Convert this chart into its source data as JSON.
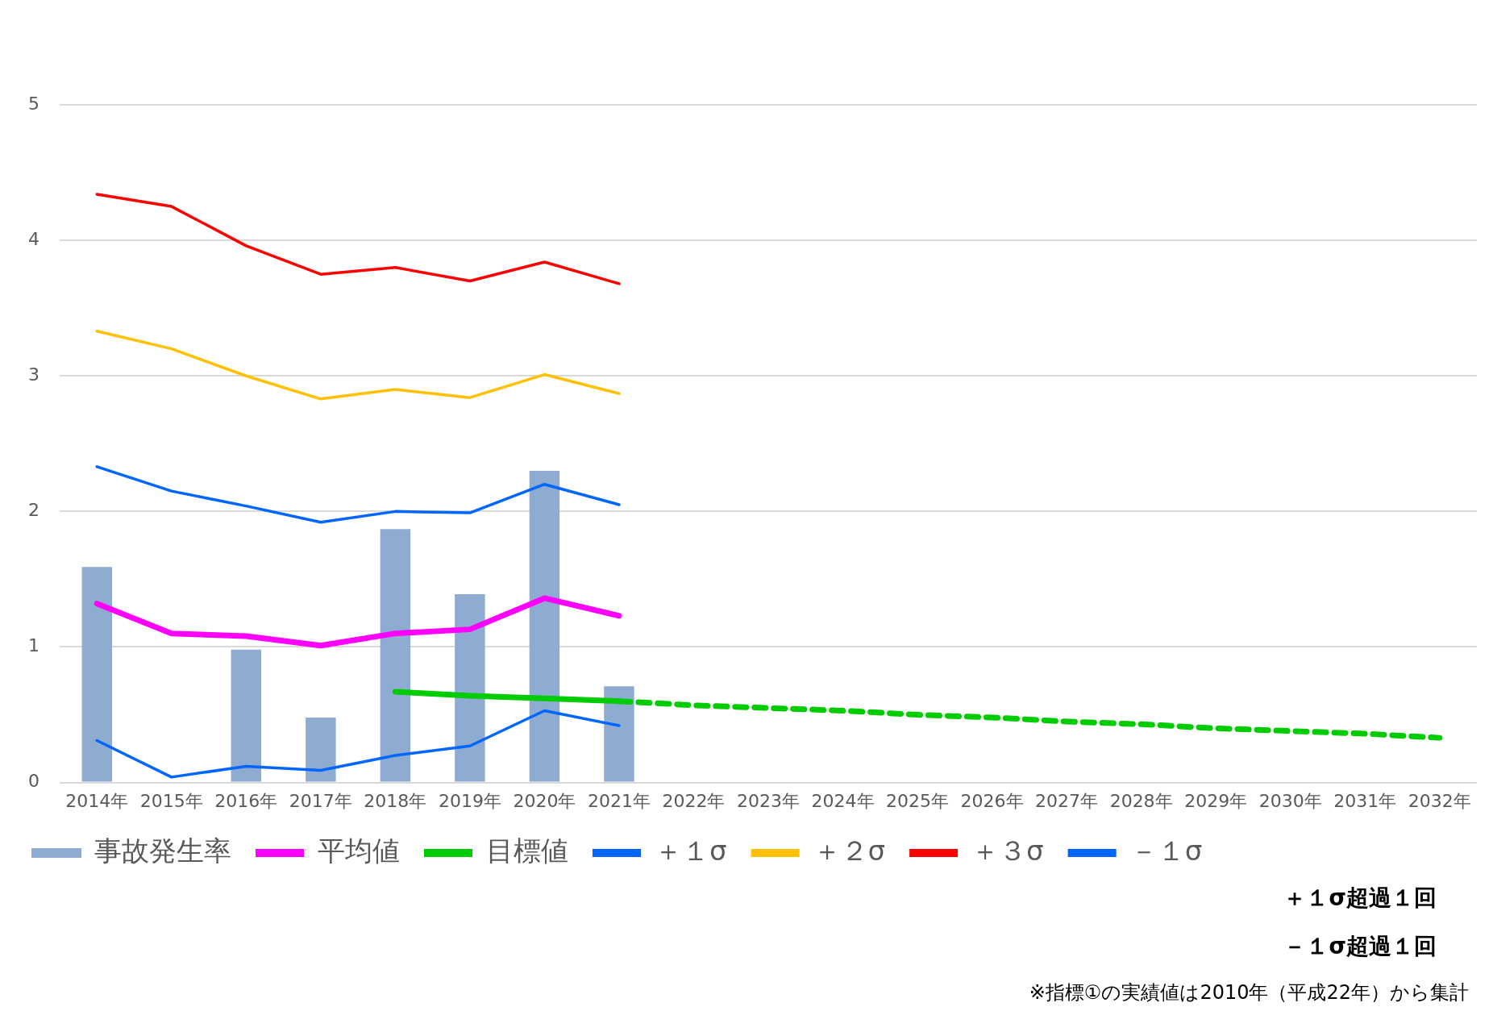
{
  "chart_data": {
    "type": "bar",
    "categories": [
      "2014年",
      "2015年",
      "2016年",
      "2017年",
      "2018年",
      "2019年",
      "2020年",
      "2021年",
      "2022年",
      "2023年",
      "2024年",
      "2025年",
      "2026年",
      "2027年",
      "2028年",
      "2029年",
      "2030年",
      "2031年",
      "2032年"
    ],
    "series": [
      {
        "name": "事故発生率",
        "color": "#8eacd2",
        "values": [
          1.59,
          0,
          0.98,
          0.48,
          1.87,
          1.39,
          2.3,
          0.71,
          null,
          null,
          null,
          null,
          null,
          null,
          null,
          null,
          null,
          null,
          null
        ]
      },
      {
        "name": "平均値",
        "type": "line",
        "color": "#ff00ff",
        "values": [
          1.32,
          1.1,
          1.08,
          1.01,
          1.1,
          1.13,
          1.36,
          1.23,
          null,
          null,
          null,
          null,
          null,
          null,
          null,
          null,
          null,
          null,
          null
        ]
      },
      {
        "name": "目標値",
        "type": "line",
        "color": "#00cc00",
        "line_style": "solid",
        "values": [
          null,
          null,
          null,
          null,
          0.67,
          0.64,
          0.62,
          0.6,
          null,
          null,
          null,
          null,
          null,
          null,
          null,
          null,
          null,
          null,
          null
        ]
      },
      {
        "type": "line",
        "color": "#00cc00",
        "line_style": "dashed",
        "values": [
          null,
          null,
          null,
          null,
          null,
          null,
          null,
          0.6,
          0.57,
          0.55,
          0.53,
          0.5,
          0.48,
          0.45,
          0.43,
          0.4,
          0.38,
          0.36,
          0.33
        ]
      },
      {
        "name": "＋１σ",
        "type": "line",
        "color": "#0066ff",
        "values": [
          2.33,
          2.15,
          2.04,
          1.92,
          2.0,
          1.99,
          2.2,
          2.05,
          null,
          null,
          null,
          null,
          null,
          null,
          null,
          null,
          null,
          null,
          null
        ]
      },
      {
        "name": "＋２σ",
        "type": "line",
        "color": "#ffc000",
        "values": [
          3.33,
          3.2,
          3.0,
          2.83,
          2.9,
          2.84,
          3.01,
          2.87,
          null,
          null,
          null,
          null,
          null,
          null,
          null,
          null,
          null,
          null,
          null
        ]
      },
      {
        "name": "＋３σ",
        "type": "line",
        "color": "#ff0000",
        "values": [
          4.34,
          4.25,
          3.96,
          3.75,
          3.8,
          3.7,
          3.84,
          3.68,
          null,
          null,
          null,
          null,
          null,
          null,
          null,
          null,
          null,
          null,
          null
        ]
      },
      {
        "name": "－１σ",
        "type": "line",
        "color": "#0066ff",
        "values": [
          0.31,
          0.04,
          0.12,
          0.09,
          0.2,
          0.27,
          0.53,
          0.42,
          null,
          null,
          null,
          null,
          null,
          null,
          null,
          null,
          null,
          null,
          null
        ]
      }
    ],
    "ylim": [
      0,
      5
    ],
    "yticks": [
      0,
      1,
      2,
      3,
      4,
      5
    ],
    "grid": "y",
    "legend": "bottom",
    "marker": "none",
    "annotations": [
      "＋１σ超過１回",
      "－１σ超過１回",
      "※指標①の実績値は2010年（平成22年）から集計"
    ]
  }
}
